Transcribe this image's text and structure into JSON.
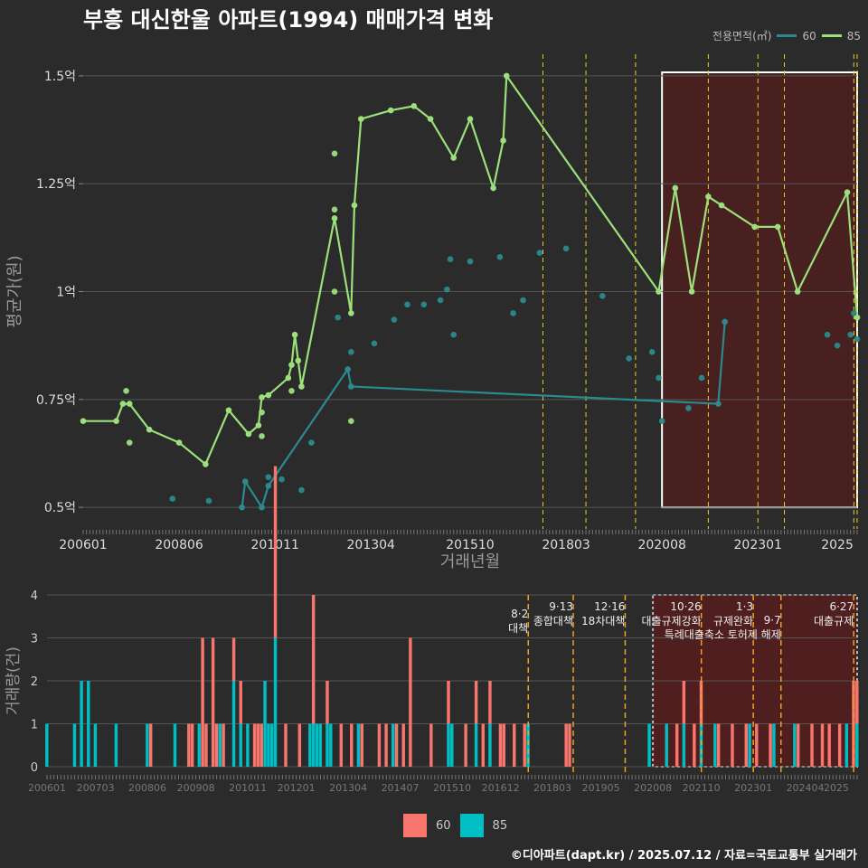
{
  "title": "부흥 대신한울 아파트(1994) 매매가격 변화",
  "footer": "©디아파트(dapt.kr) / 2025.07.12 / 자료=국토교통부 실거래가",
  "legend_top": {
    "title": "전용면적(㎡)",
    "items": [
      {
        "label": "60",
        "color": "#2a8a8e"
      },
      {
        "label": "85",
        "color": "#9be07a"
      }
    ]
  },
  "legend_bottom": {
    "items": [
      {
        "label": "60",
        "color": "#f8766d"
      },
      {
        "label": "85",
        "color": "#00bfc4"
      }
    ]
  },
  "chart_data": [
    {
      "type": "line",
      "xlabel": "거래년월",
      "ylabel": "평균가(원)",
      "x_range": [
        "2006-01",
        "2025-07"
      ],
      "ylim": [
        0.45,
        1.55
      ],
      "ytick_labels": [
        {
          "value": 0.5,
          "label": "0.5억"
        },
        {
          "value": 0.75,
          "label": "0.75억"
        },
        {
          "value": 1.0,
          "label": "1억"
        },
        {
          "value": 1.25,
          "label": "1.25억"
        },
        {
          "value": 1.5,
          "label": "1.5억"
        }
      ],
      "xtick_labels": [
        "200601",
        "200806",
        "201011",
        "201304",
        "201510",
        "201803",
        "202008",
        "202301",
        "2025"
      ],
      "grid": true,
      "legend_position": "top-right",
      "policy_lines": [
        "2017-08",
        "2018-09",
        "2019-12",
        "2021-10",
        "2023-01",
        "2023-09",
        "2025-06",
        "2025-07"
      ],
      "highlight_range": [
        "2020-08",
        "2025-07"
      ],
      "series": [
        {
          "name": "85",
          "color": "#9be07a",
          "line": [
            [
              "2006-01",
              0.7
            ],
            [
              "2006-11",
              0.7
            ],
            [
              "2007-01",
              0.74
            ],
            [
              "2007-03",
              0.74
            ],
            [
              "2007-09",
              0.68
            ],
            [
              "2008-06",
              0.65
            ],
            [
              "2009-02",
              0.6
            ],
            [
              "2009-09",
              0.725
            ],
            [
              "2010-03",
              0.67
            ],
            [
              "2010-06",
              0.69
            ],
            [
              "2010-07",
              0.755
            ],
            [
              "2010-09",
              0.76
            ],
            [
              "2011-03",
              0.8
            ],
            [
              "2011-04",
              0.83
            ],
            [
              "2011-05",
              0.9
            ],
            [
              "2011-06",
              0.84
            ],
            [
              "2011-07",
              0.78
            ],
            [
              "2012-05",
              1.17
            ],
            [
              "2012-10",
              0.95
            ],
            [
              "2012-11",
              1.2
            ],
            [
              "2013-01",
              1.4
            ],
            [
              "2013-10",
              1.42
            ],
            [
              "2014-05",
              1.43
            ],
            [
              "2014-10",
              1.4
            ],
            [
              "2015-05",
              1.31
            ],
            [
              "2015-10",
              1.4
            ],
            [
              "2016-05",
              1.24
            ],
            [
              "2016-08",
              1.35
            ],
            [
              "2016-09",
              1.5
            ],
            [
              "2020-07",
              1.0
            ],
            [
              "2020-12",
              1.24
            ],
            [
              "2021-05",
              1.0
            ],
            [
              "2021-10",
              1.22
            ],
            [
              "2022-02",
              1.2
            ],
            [
              "2022-12",
              1.15
            ],
            [
              "2023-07",
              1.15
            ],
            [
              "2024-01",
              1.0
            ],
            [
              "2025-04",
              1.23
            ],
            [
              "2025-07",
              0.94
            ]
          ],
          "points": [
            [
              "2007-02",
              0.77
            ],
            [
              "2007-03",
              0.65
            ],
            [
              "2012-05",
              1.32
            ],
            [
              "2012-05",
              1.19
            ],
            [
              "2012-05",
              1.0
            ],
            [
              "2010-07",
              0.72
            ],
            [
              "2010-07",
              0.665
            ],
            [
              "2011-04",
              0.77
            ],
            [
              "2012-10",
              0.7
            ]
          ]
        },
        {
          "name": "60",
          "color": "#2a8a8e",
          "line": [
            [
              "2010-01",
              0.5
            ],
            [
              "2010-02",
              0.56
            ],
            [
              "2010-07",
              0.5
            ],
            [
              "2010-09",
              0.55
            ],
            [
              "2012-09",
              0.82
            ],
            [
              "2012-10",
              0.78
            ],
            [
              "2022-01",
              0.74
            ],
            [
              "2022-03",
              0.93
            ]
          ],
          "points": [
            [
              "2008-04",
              0.52
            ],
            [
              "2009-03",
              0.515
            ],
            [
              "2010-09",
              0.57
            ],
            [
              "2011-01",
              0.565
            ],
            [
              "2011-07",
              0.54
            ],
            [
              "2011-10",
              0.65
            ],
            [
              "2012-06",
              0.94
            ],
            [
              "2012-10",
              0.86
            ],
            [
              "2013-05",
              0.88
            ],
            [
              "2013-11",
              0.935
            ],
            [
              "2014-03",
              0.97
            ],
            [
              "2014-08",
              0.97
            ],
            [
              "2015-01",
              0.98
            ],
            [
              "2015-03",
              1.005
            ],
            [
              "2015-04",
              1.075
            ],
            [
              "2015-05",
              0.9
            ],
            [
              "2015-10",
              1.07
            ],
            [
              "2016-07",
              1.08
            ],
            [
              "2016-11",
              0.95
            ],
            [
              "2017-02",
              0.98
            ],
            [
              "2017-07",
              1.09
            ],
            [
              "2018-03",
              1.1
            ],
            [
              "2019-02",
              0.99
            ],
            [
              "2019-10",
              0.845
            ],
            [
              "2020-05",
              0.86
            ],
            [
              "2020-07",
              0.8
            ],
            [
              "2020-08",
              0.7
            ],
            [
              "2021-04",
              0.73
            ],
            [
              "2021-08",
              0.8
            ],
            [
              "2024-10",
              0.9
            ],
            [
              "2025-01",
              0.875
            ],
            [
              "2025-05",
              0.9
            ],
            [
              "2025-06",
              0.95
            ],
            [
              "2025-07",
              0.89
            ]
          ]
        }
      ]
    },
    {
      "type": "bar",
      "xlabel": "",
      "ylabel": "거래량(건)",
      "ylim": [
        0,
        4
      ],
      "ytick_labels": [
        "0",
        "1",
        "2",
        "3",
        "4"
      ],
      "xtick_labels": [
        "200601",
        "200703",
        "200806",
        "200908",
        "201011",
        "201201",
        "201304",
        "201407",
        "201510",
        "201612",
        "201803",
        "201905",
        "202008",
        "202110",
        "202301",
        "202404",
        "2025"
      ],
      "stacked": true,
      "highlight_range": [
        "2020-08",
        "2025-07"
      ],
      "annotations": [
        {
          "date": "2017-08",
          "label": "8·2 대책"
        },
        {
          "date": "2018-09",
          "label": "9·13 종합대책"
        },
        {
          "date": "2019-12",
          "label": "12·16 18차대책"
        },
        {
          "date": "2021-10",
          "label": "10·26 대출규제강화"
        },
        {
          "date": "2023-01",
          "label": "1·3 규제완화"
        },
        {
          "date": "2023-09",
          "label": "9·7 특례대출축소 토허제 해제"
        },
        {
          "date": "2025-06",
          "label": "6·27 대출규제"
        }
      ],
      "series": [
        {
          "name": "60",
          "color": "#f8766d",
          "values": [
            [
              "2008-07",
              1
            ],
            [
              "2009-06",
              1
            ],
            [
              "2009-07",
              1
            ],
            [
              "2009-10",
              3
            ],
            [
              "2009-11",
              1
            ],
            [
              "2010-01",
              3
            ],
            [
              "2010-02",
              1
            ],
            [
              "2010-04",
              1
            ],
            [
              "2010-07",
              1
            ],
            [
              "2010-09",
              1
            ],
            [
              "2011-01",
              1
            ],
            [
              "2011-02",
              1
            ],
            [
              "2011-03",
              1
            ],
            [
              "2011-07",
              4
            ],
            [
              "2011-10",
              1
            ],
            [
              "2012-02",
              1
            ],
            [
              "2012-06",
              3
            ],
            [
              "2012-10",
              1
            ],
            [
              "2013-02",
              1
            ],
            [
              "2013-05",
              1
            ],
            [
              "2013-08",
              1
            ],
            [
              "2014-01",
              1
            ],
            [
              "2014-03",
              1
            ],
            [
              "2014-06",
              1
            ],
            [
              "2014-08",
              1
            ],
            [
              "2014-10",
              3
            ],
            [
              "2015-04",
              1
            ],
            [
              "2015-09",
              1
            ],
            [
              "2016-02",
              1
            ],
            [
              "2016-05",
              1
            ],
            [
              "2016-07",
              1
            ],
            [
              "2016-09",
              1
            ],
            [
              "2016-12",
              1
            ],
            [
              "2017-01",
              1
            ],
            [
              "2017-04",
              1
            ],
            [
              "2017-07",
              1
            ],
            [
              "2018-07",
              1
            ],
            [
              "2018-08",
              1
            ],
            [
              "2021-03",
              1
            ],
            [
              "2021-05",
              1
            ],
            [
              "2021-08",
              1
            ],
            [
              "2021-10",
              1
            ],
            [
              "2022-03",
              1
            ],
            [
              "2022-07",
              1
            ],
            [
              "2022-11",
              1
            ],
            [
              "2023-02",
              1
            ],
            [
              "2023-06",
              1
            ],
            [
              "2024-02",
              1
            ],
            [
              "2024-06",
              1
            ],
            [
              "2024-09",
              1
            ],
            [
              "2024-11",
              1
            ],
            [
              "2025-02",
              1
            ],
            [
              "2025-06",
              2
            ],
            [
              "2025-07",
              1
            ]
          ]
        },
        {
          "name": "85",
          "color": "#00bfc4",
          "values": [
            [
              "2006-01",
              1
            ],
            [
              "2006-09",
              1
            ],
            [
              "2006-11",
              2
            ],
            [
              "2007-01",
              2
            ],
            [
              "2007-03",
              1
            ],
            [
              "2007-09",
              1
            ],
            [
              "2008-06",
              1
            ],
            [
              "2009-02",
              1
            ],
            [
              "2009-09",
              1
            ],
            [
              "2010-03",
              1
            ],
            [
              "2010-07",
              2
            ],
            [
              "2010-09",
              1
            ],
            [
              "2010-11",
              1
            ],
            [
              "2011-04",
              2
            ],
            [
              "2011-05",
              1
            ],
            [
              "2011-06",
              1
            ],
            [
              "2011-07",
              3
            ],
            [
              "2012-05",
              1
            ],
            [
              "2012-06",
              1
            ],
            [
              "2012-07",
              1
            ],
            [
              "2012-08",
              1
            ],
            [
              "2012-10",
              1
            ],
            [
              "2012-11",
              1
            ],
            [
              "2013-07",
              1
            ],
            [
              "2014-05",
              1
            ],
            [
              "2015-09",
              1
            ],
            [
              "2015-10",
              1
            ],
            [
              "2016-05",
              1
            ],
            [
              "2016-09",
              1
            ],
            [
              "2017-08",
              1
            ],
            [
              "2020-07",
              1
            ],
            [
              "2020-12",
              1
            ],
            [
              "2021-05",
              1
            ],
            [
              "2021-10",
              1
            ],
            [
              "2022-02",
              1
            ],
            [
              "2022-12",
              1
            ],
            [
              "2023-07",
              1
            ],
            [
              "2024-01",
              1
            ],
            [
              "2025-04",
              1
            ],
            [
              "2025-07",
              1
            ]
          ]
        }
      ]
    }
  ]
}
